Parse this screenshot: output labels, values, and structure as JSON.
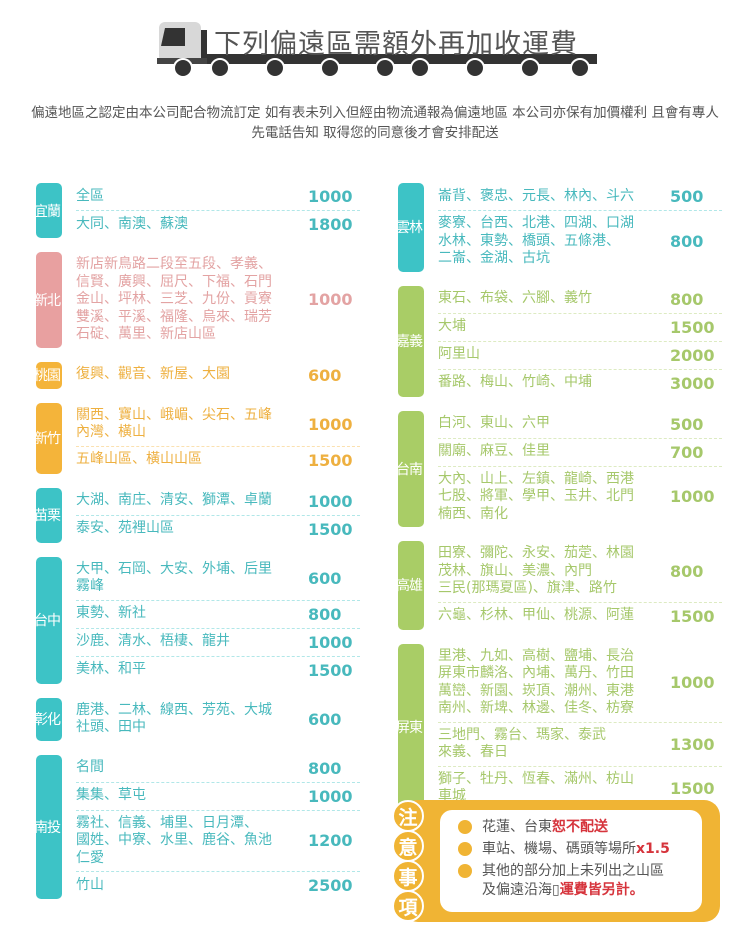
{
  "header": {
    "title": "下列偏遠區需額外再加收運費",
    "description": "偏遠地區之認定由本公司配合物流訂定 如有表未列入但經由物流通報為偏遠地區 本公司亦保有加價權利 且會有專人先電話告知 取得您的同意後才會安排配送",
    "icon": "truck-icon"
  },
  "colors": {
    "teal": "#3dc3c6",
    "teal_text": "#48b9bd",
    "pink": "#e8a0a0",
    "pink_text": "#e3a3a3",
    "orange": "#f4b43a",
    "orange_text": "#eeb040",
    "green": "#a9cd66",
    "green_text": "#a6c86b",
    "note": "#f0b434",
    "red": "#d6343c"
  },
  "left_groups": [
    {
      "region": "宜蘭",
      "color": "teal",
      "rows": [
        {
          "areas": "全區",
          "price": "1000"
        },
        {
          "areas": "大同、南澳、蘇澳",
          "price": "1800"
        }
      ]
    },
    {
      "region": "新北",
      "color": "pink",
      "rows": [
        {
          "areas": "新店新鳥路二段至五段、孝義、\n信賢、廣興、屈尺、下福、石門\n金山、坪林、三芝、九份、貢寮\n雙溪、平溪、福隆、烏來、瑞芳\n石碇、萬里、新店山區",
          "price": "1000"
        }
      ]
    },
    {
      "region": "桃園",
      "color": "orange",
      "rows": [
        {
          "areas": "復興、觀音、新屋、大園",
          "price": "600"
        }
      ]
    },
    {
      "region": "新竹",
      "color": "orange",
      "rows": [
        {
          "areas": "關西、寶山、峨嵋、尖石、五峰\n內灣、橫山",
          "price": "1000"
        },
        {
          "areas": "五峰山區、橫山山區",
          "price": "1500"
        }
      ]
    },
    {
      "region": "苗栗",
      "color": "teal",
      "rows": [
        {
          "areas": "大湖、南庄、清安、獅潭、卓蘭",
          "price": "1000"
        },
        {
          "areas": "泰安、苑裡山區",
          "price": "1500"
        }
      ]
    },
    {
      "region": "台中",
      "color": "teal",
      "rows": [
        {
          "areas": "大甲、石岡、大安、外埔、后里\n霧峰",
          "price": "600"
        },
        {
          "areas": "東勢、新社",
          "price": "800"
        },
        {
          "areas": "沙鹿、清水、梧棲、龍井",
          "price": "1000"
        },
        {
          "areas": "美林、和平",
          "price": "1500"
        }
      ]
    },
    {
      "region": "彰化",
      "color": "teal",
      "rows": [
        {
          "areas": "鹿港、二林、線西、芳苑、大城\n社頭、田中",
          "price": "600"
        }
      ]
    },
    {
      "region": "南投",
      "color": "teal",
      "rows": [
        {
          "areas": "名間",
          "price": "800"
        },
        {
          "areas": "集集、草屯",
          "price": "1000"
        },
        {
          "areas": "霧社、信義、埔里、日月潭、\n國姓、中寮、水里、鹿谷、魚池\n仁愛",
          "price": "1200"
        },
        {
          "areas": "竹山",
          "price": "2500"
        }
      ]
    }
  ],
  "right_groups": [
    {
      "region": "雲林",
      "color": "teal",
      "rows": [
        {
          "areas": "崙背、褒忠、元長、林內、斗六",
          "price": "500"
        },
        {
          "areas": "麥寮、台西、北港、四湖、口湖\n水林、東勢、橋頭、五條港、\n二崙、金湖、古坑",
          "price": "800"
        }
      ]
    },
    {
      "region": "嘉義",
      "color": "green",
      "rows": [
        {
          "areas": "東石、布袋、六腳、義竹",
          "price": "800"
        },
        {
          "areas": "大埔",
          "price": "1500"
        },
        {
          "areas": "阿里山",
          "price": "2000"
        },
        {
          "areas": "番路、梅山、竹崎、中埔",
          "price": "3000"
        }
      ]
    },
    {
      "region": "台南",
      "color": "green",
      "rows": [
        {
          "areas": "白河、東山、六甲",
          "price": "500"
        },
        {
          "areas": "關廟、麻豆、佳里",
          "price": "700"
        },
        {
          "areas": "大內、山上、左鎮、龍崎、西港\n七股、將軍、學甲、玉井、北門\n楠西、南化",
          "price": "1000"
        }
      ]
    },
    {
      "region": "高雄",
      "color": "green",
      "rows": [
        {
          "areas": "田寮、彌陀、永安、茄萣、林園\n茂林、旗山、美濃、內門\n三民(那瑪夏區)、旗津、路竹",
          "price": "800"
        },
        {
          "areas": "六龜、杉林、甲仙、桃源、阿蓮",
          "price": "1500"
        }
      ]
    },
    {
      "region": "屏東",
      "color": "green",
      "rows": [
        {
          "areas": "里港、九如、高樹、鹽埔、長治\n屏東市麟洛、內埔、萬丹、竹田\n萬巒、新園、崁頂、潮州、東港\n南州、新埤、林邊、佳冬、枋寮",
          "price": "1000"
        },
        {
          "areas": "三地門、霧台、瑪家、泰武\n來義、春日",
          "price": "1300"
        },
        {
          "areas": "獅子、牡丹、恆春、滿州、枋山\n車城",
          "price": "1500"
        }
      ]
    }
  ],
  "notes": {
    "badge": [
      "注",
      "意",
      "事",
      "項"
    ],
    "items": [
      {
        "text": "花蓮、台東",
        "highlight": "恕不配送"
      },
      {
        "text": "車站、機場、碼頭等場所",
        "highlight": "x1.5"
      },
      {
        "text": "其他的部分加上未列出之山區\n及偏遠沿海▯",
        "highlight": "運費皆另計。"
      }
    ]
  }
}
